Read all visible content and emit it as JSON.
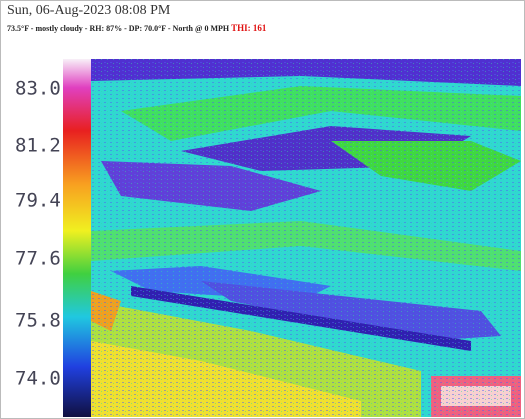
{
  "header": {
    "datetime": "Sun, 06-Aug-2023 08:08 PM",
    "conditions": "73.5°F - mostly cloudy - RH: 87% - DP: 70.0°F - North @ 0 MPH",
    "index": "THI: 161"
  },
  "scale": {
    "labels": [
      "83.0",
      "81.2",
      "79.4",
      "77.6",
      "75.8",
      "74.0"
    ]
  }
}
